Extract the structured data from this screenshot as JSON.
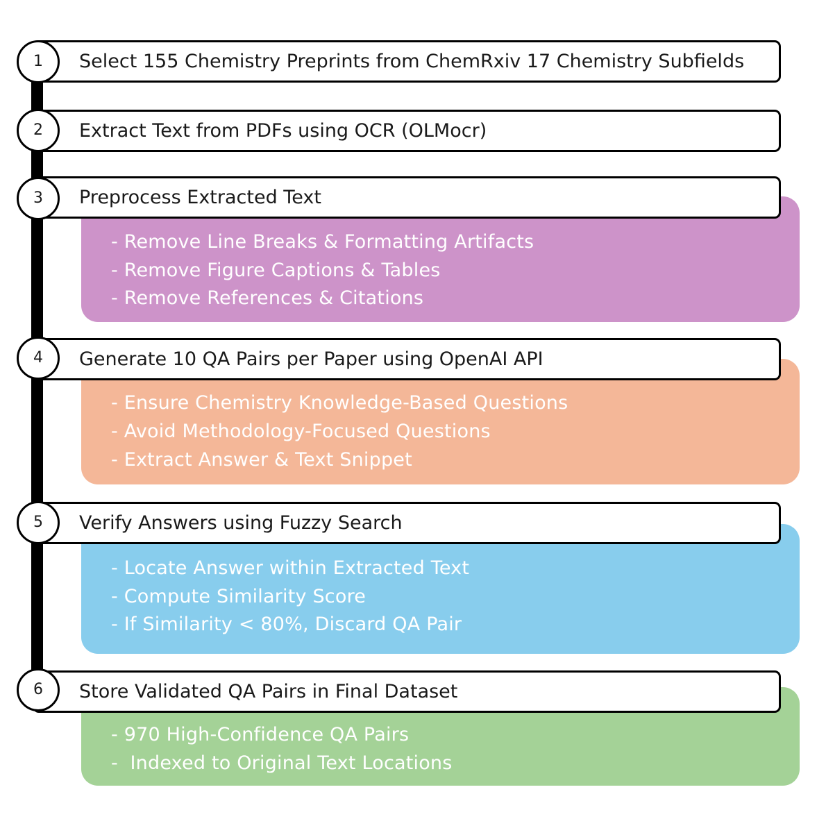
{
  "colors": {
    "preprocess": "#cd93c9",
    "generate": "#f4b798",
    "verify": "#88cded",
    "store": "#a4d297"
  },
  "steps": [
    {
      "number": "1",
      "title": "Select 155 Chemistry Preprints from ChemRxiv 17 Chemistry Subfields",
      "details": []
    },
    {
      "number": "2",
      "title": "Extract Text from PDFs using OCR (OLMocr)",
      "details": []
    },
    {
      "number": "3",
      "title": "Preprocess Extracted Text",
      "details": [
        "- Remove Line Breaks & Formatting Artifacts",
        "- Remove Figure Captions & Tables",
        "- Remove References & Citations"
      ]
    },
    {
      "number": "4",
      "title": "Generate 10 QA Pairs per Paper using OpenAI API",
      "details": [
        "- Ensure Chemistry Knowledge-Based Questions",
        "- Avoid Methodology-Focused Questions",
        "- Extract Answer & Text Snippet"
      ]
    },
    {
      "number": "5",
      "title": "Verify Answers using Fuzzy Search",
      "details": [
        "- Locate Answer within Extracted Text",
        "- Compute Similarity Score",
        "- If Similarity < 80%, Discard QA Pair"
      ]
    },
    {
      "number": "6",
      "title": "Store Validated QA Pairs in Final Dataset",
      "details": [
        "- 970 High-Confidence QA Pairs",
        "-  Indexed to Original Text Locations"
      ]
    }
  ]
}
